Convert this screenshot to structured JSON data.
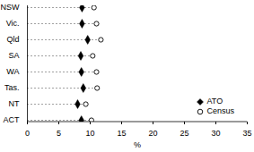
{
  "chart_data": {
    "type": "dot",
    "orientation": "horizontal",
    "categories": [
      "NSW",
      "Vic.",
      "Qld",
      "SA",
      "WA",
      "Tas.",
      "NT",
      "ACT"
    ],
    "series": [
      {
        "name": "ATO",
        "color": "#000000",
        "marker": "diamond",
        "values": [
          8.7,
          8.7,
          9.6,
          8.5,
          8.6,
          8.9,
          8.0,
          8.6
        ]
      },
      {
        "name": "Census",
        "color": "#000000",
        "marker": "circle_open",
        "values": [
          10.6,
          11.0,
          11.7,
          10.4,
          11.0,
          11.1,
          9.3,
          10.2
        ]
      }
    ],
    "x_label": "%",
    "xlim": [
      0,
      35
    ],
    "xticks": [
      0,
      5,
      10,
      15,
      20,
      25,
      30,
      35
    ],
    "legend": "bottom-right",
    "grid": false
  }
}
